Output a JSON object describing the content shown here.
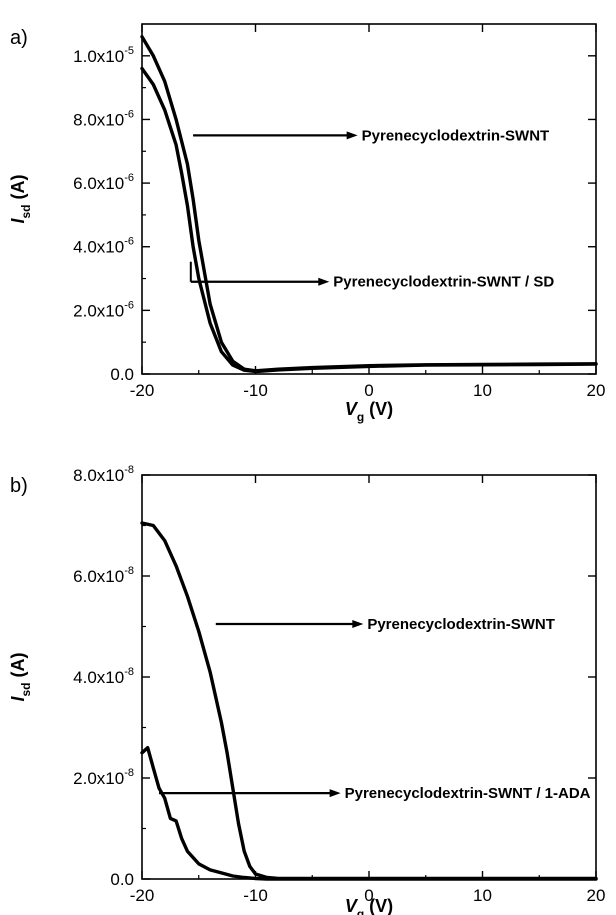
{
  "chart_data": [
    {
      "type": "line",
      "panel_label": "a)",
      "xlabel": {
        "main": "V",
        "sub": "g",
        "unit": " (V)"
      },
      "ylabel": {
        "main": "I",
        "sub": "sd",
        "unit": " (A)"
      },
      "xlim": [
        -20,
        20
      ],
      "ylim": [
        0,
        1.1e-05
      ],
      "xticks": [
        {
          "value": -20,
          "label": "-20"
        },
        {
          "value": -10,
          "label": "-10"
        },
        {
          "value": 0,
          "label": "0"
        },
        {
          "value": 10,
          "label": "10"
        },
        {
          "value": 20,
          "label": "20"
        }
      ],
      "yticks": [
        {
          "value": 0,
          "label": "0.0",
          "exp": ""
        },
        {
          "value": 2e-06,
          "label": "2.0x10",
          "exp": "-6"
        },
        {
          "value": 4e-06,
          "label": "4.0x10",
          "exp": "-6"
        },
        {
          "value": 6e-06,
          "label": "6.0x10",
          "exp": "-6"
        },
        {
          "value": 8e-06,
          "label": "8.0x10",
          "exp": "-6"
        },
        {
          "value": 1e-05,
          "label": "1.0x10",
          "exp": "-5"
        }
      ],
      "grid": false,
      "series": [
        {
          "name": "Pyrenecyclodextrin-SWNT",
          "x": [
            -20,
            -19,
            -18,
            -17,
            -16,
            -15.5,
            -15,
            -14,
            -13,
            -12,
            -11,
            -10,
            -8,
            -5,
            0,
            5,
            10,
            15,
            20
          ],
          "y": [
            1.06e-05,
            1e-05,
            9.2e-06,
            8e-06,
            6.6e-06,
            5.5e-06,
            4.2e-06,
            2.2e-06,
            1e-06,
            4e-07,
            1.5e-07,
            1e-07,
            1.5e-07,
            2e-07,
            2.6e-07,
            2.9e-07,
            3e-07,
            3.1e-07,
            3.2e-07
          ]
        },
        {
          "name": "Pyrenecyclodextrin-SWNT / SD",
          "x": [
            -20,
            -19,
            -18,
            -17,
            -16.5,
            -16,
            -15.5,
            -15,
            -14,
            -13,
            -12,
            -11,
            -10,
            -8,
            -5,
            0,
            5,
            10,
            15,
            20
          ],
          "y": [
            9.6e-06,
            9.1e-06,
            8.3e-06,
            7.2e-06,
            6.3e-06,
            5.3e-06,
            4e-06,
            3e-06,
            1.6e-06,
            7e-07,
            2.8e-07,
            1.2e-07,
            8e-08,
            1.3e-07,
            1.8e-07,
            2.4e-07,
            2.8e-07,
            2.9e-07,
            3e-07,
            3.1e-07
          ]
        }
      ],
      "annotations": [
        {
          "text": "Pyrenecyclodextrin-SWNT",
          "from": [
            -15.5,
            7.5e-06
          ],
          "to": [
            -1.0,
            7.5e-06
          ]
        },
        {
          "text": "Pyrenecyclodextrin-SWNT / SD",
          "from": [
            -15.7,
            2.9e-06
          ],
          "to": [
            -3.5,
            2.9e-06
          ]
        }
      ]
    },
    {
      "type": "line",
      "panel_label": "b)",
      "xlabel": {
        "main": "V",
        "sub": "g",
        "unit": " (V)"
      },
      "ylabel": {
        "main": "I",
        "sub": "sd",
        "unit": " (A)"
      },
      "xlim": [
        -20,
        20
      ],
      "ylim": [
        0,
        8e-08
      ],
      "xticks": [
        {
          "value": -20,
          "label": "-20"
        },
        {
          "value": -10,
          "label": "-10"
        },
        {
          "value": 0,
          "label": "0"
        },
        {
          "value": 10,
          "label": "10"
        },
        {
          "value": 20,
          "label": "20"
        }
      ],
      "yticks": [
        {
          "value": 0,
          "label": "0.0",
          "exp": ""
        },
        {
          "value": 2e-08,
          "label": "2.0x10",
          "exp": "-8"
        },
        {
          "value": 4e-08,
          "label": "4.0x10",
          "exp": "-8"
        },
        {
          "value": 6e-08,
          "label": "6.0x10",
          "exp": "-8"
        },
        {
          "value": 8e-08,
          "label": "8.0x10",
          "exp": "-8"
        }
      ],
      "grid": false,
      "series": [
        {
          "name": "Pyrenecyclodextrin-SWNT",
          "x": [
            -20,
            -19,
            -18,
            -17,
            -16,
            -15,
            -14,
            -13,
            -12.5,
            -12,
            -11.5,
            -11,
            -10.5,
            -10,
            -9,
            -8,
            -5,
            0,
            5,
            10,
            20
          ],
          "y": [
            7.05e-08,
            7e-08,
            6.7e-08,
            6.2e-08,
            5.6e-08,
            4.9e-08,
            4.1e-08,
            3.1e-08,
            2.5e-08,
            1.8e-08,
            1.1e-08,
            5.5e-09,
            2.5e-09,
            1e-09,
            3e-10,
            1e-10,
            1e-10,
            1e-10,
            1e-10,
            1e-10,
            1e-10
          ]
        },
        {
          "name": "Pyrenecyclodextrin-SWNT / 1-ADA",
          "x": [
            -20,
            -19.5,
            -19,
            -18.5,
            -18,
            -17.5,
            -17,
            -16.5,
            -16,
            -15,
            -14,
            -13,
            -12,
            -11,
            -10,
            -9,
            -8,
            -5,
            0,
            10,
            20
          ],
          "y": [
            2.5e-08,
            2.6e-08,
            2.2e-08,
            1.8e-08,
            1.6e-08,
            1.2e-08,
            1.15e-08,
            8e-09,
            5.5e-09,
            3e-09,
            1.8e-09,
            1.2e-09,
            6e-10,
            3e-10,
            1e-10,
            0,
            0,
            0,
            0,
            0,
            0
          ]
        }
      ],
      "annotations": [
        {
          "text": "Pyrenecyclodextrin-SWNT",
          "from": [
            -13.5,
            5.05e-08
          ],
          "to": [
            -0.5,
            5.05e-08
          ]
        },
        {
          "text": "Pyrenecyclodextrin-SWNT / 1-ADA",
          "from": [
            -18.5,
            1.7e-08
          ],
          "to": [
            -2.5,
            1.7e-08
          ]
        }
      ]
    }
  ]
}
